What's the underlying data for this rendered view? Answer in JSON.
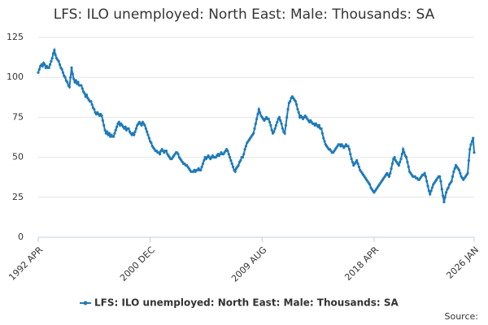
{
  "chart_data": {
    "type": "line",
    "title": "LFS: ILO unemployed: North East: Male: Thousands: SA",
    "source": "Source:",
    "categories": [
      "1992 APR",
      null,
      null,
      null,
      null,
      null,
      null,
      null,
      null,
      null,
      null,
      null,
      null,
      null,
      null,
      null,
      null,
      null,
      null,
      null,
      null,
      null,
      null,
      null,
      null,
      null,
      null,
      null,
      null,
      null,
      null,
      null,
      null,
      null,
      null,
      null,
      null,
      null,
      null,
      null,
      null,
      null,
      null,
      null,
      null,
      null,
      null,
      null,
      null,
      null,
      null,
      null,
      null,
      null,
      null,
      null,
      null,
      null,
      null,
      null,
      null,
      null,
      null,
      null,
      null,
      null,
      null,
      null,
      null,
      null,
      null,
      null,
      null,
      null,
      null,
      null,
      null,
      null,
      null,
      null,
      null,
      null,
      null,
      null,
      null,
      null,
      null,
      null,
      null,
      null,
      null,
      null,
      null,
      null,
      null,
      null,
      null,
      null,
      null,
      null,
      null,
      null,
      null,
      null,
      "2000 DEC",
      null,
      null,
      null,
      null,
      null,
      null,
      null,
      null,
      null,
      null,
      null,
      null,
      null,
      null,
      null,
      null,
      null,
      null,
      null,
      null,
      null,
      null,
      null,
      null,
      null,
      null,
      null,
      null,
      null,
      null,
      null,
      null,
      null,
      null,
      null,
      null,
      null,
      null,
      null,
      null,
      null,
      null,
      null,
      null,
      null,
      null,
      null,
      null,
      null,
      null,
      null,
      null,
      null,
      null,
      null,
      null,
      null,
      null,
      null,
      null,
      null,
      null,
      null,
      null,
      null,
      null,
      null,
      null,
      null,
      null,
      null,
      null,
      null,
      null,
      null,
      null,
      null,
      null,
      null,
      null,
      null,
      null,
      null,
      null,
      null,
      null,
      null,
      null,
      null,
      null,
      null,
      null,
      null,
      null,
      null,
      null,
      null,
      null,
      null,
      null,
      null,
      null,
      null,
      "2009 AUG",
      null,
      null,
      null,
      null,
      null,
      null,
      null,
      null,
      null,
      null,
      null,
      null,
      null,
      null,
      null,
      null,
      null,
      null,
      null,
      null,
      null,
      null,
      null,
      null,
      null,
      null,
      null,
      null,
      null,
      null,
      null,
      null,
      null,
      null,
      null,
      null,
      null,
      null,
      null,
      null,
      null,
      null,
      null,
      null,
      null,
      null,
      null,
      null,
      null,
      null,
      null,
      null,
      null,
      null,
      null,
      null,
      null,
      null,
      null,
      null,
      null,
      null,
      null,
      null,
      null,
      null,
      null,
      null,
      null,
      null,
      null,
      null,
      null,
      null,
      null,
      null,
      null,
      null,
      null,
      null,
      null,
      null,
      null,
      null,
      null,
      null,
      null,
      null,
      null,
      null,
      null,
      null,
      null,
      null,
      null,
      null,
      null,
      null,
      null,
      null,
      null,
      null,
      null,
      "2018 APR",
      null,
      null,
      null,
      null,
      null,
      null,
      null,
      null,
      null,
      null,
      null,
      null,
      null,
      null,
      null,
      null,
      null,
      null,
      null,
      null,
      null,
      null,
      null,
      null,
      null,
      null,
      null,
      null,
      null,
      null,
      null,
      null,
      null,
      null,
      null,
      null,
      null,
      null,
      null,
      null,
      null,
      null,
      null,
      null,
      null,
      null,
      null,
      null,
      null,
      null,
      null,
      null,
      null,
      null,
      null,
      null,
      null,
      null,
      null,
      null,
      null,
      null,
      null,
      null,
      null,
      null,
      null,
      null,
      null,
      null,
      null,
      null,
      null,
      null,
      null,
      null,
      null,
      null,
      null,
      null,
      null,
      null,
      null,
      null,
      null,
      null,
      null,
      null,
      null,
      null,
      null,
      null,
      "2026 JAN"
    ],
    "series": [
      {
        "name": "LFS: ILO unemployed: North East: Male: Thousands: SA",
        "color": "#1f7ab8",
        "values": [
          103,
          105,
          107,
          108,
          107,
          109,
          108,
          106,
          107,
          106,
          106,
          108,
          110,
          112,
          115,
          117,
          114,
          112,
          111,
          110,
          108,
          106,
          105,
          103,
          101,
          100,
          98,
          97,
          95,
          94,
          100,
          106,
          102,
          99,
          97,
          98,
          96,
          97,
          95,
          95,
          95,
          93,
          91,
          90,
          88,
          89,
          87,
          86,
          85,
          85,
          83,
          81,
          80,
          78,
          77,
          78,
          77,
          76,
          77,
          76,
          73,
          70,
          67,
          65,
          66,
          64,
          65,
          63,
          64,
          63,
          63,
          65,
          67,
          69,
          71,
          72,
          70,
          71,
          70,
          69,
          68,
          69,
          67,
          68,
          68,
          66,
          65,
          64,
          65,
          64,
          66,
          68,
          70,
          71,
          72,
          71,
          70,
          72,
          71,
          70,
          68,
          66,
          64,
          62,
          60,
          59,
          57,
          56,
          55,
          54,
          54,
          53,
          53,
          52,
          54,
          55,
          54,
          53,
          54,
          54,
          52,
          51,
          50,
          49,
          49,
          50,
          51,
          52,
          53,
          53,
          52,
          50,
          49,
          48,
          47,
          46,
          46,
          45,
          45,
          44,
          43,
          42,
          41,
          41,
          41,
          42,
          41,
          42,
          42,
          43,
          42,
          42,
          44,
          46,
          48,
          50,
          49,
          50,
          51,
          50,
          49,
          50,
          51,
          50,
          50,
          50,
          51,
          52,
          51,
          52,
          53,
          52,
          52,
          53,
          54,
          55,
          54,
          52,
          50,
          48,
          46,
          44,
          42,
          41,
          43,
          44,
          45,
          47,
          48,
          50,
          50,
          52,
          55,
          57,
          59,
          60,
          61,
          62,
          63,
          64,
          65,
          68,
          71,
          74,
          77,
          80,
          78,
          76,
          75,
          74,
          73,
          74,
          75,
          74,
          74,
          72,
          70,
          67,
          65,
          66,
          68,
          70,
          72,
          74,
          75,
          73,
          71,
          68,
          66,
          65,
          70,
          75,
          80,
          84,
          85,
          87,
          88,
          87,
          86,
          85,
          83,
          80,
          78,
          75,
          76,
          75,
          74,
          75,
          76,
          75,
          74,
          73,
          72,
          73,
          72,
          71,
          71,
          70,
          71,
          70,
          69,
          70,
          68,
          68,
          65,
          62,
          60,
          58,
          57,
          56,
          55,
          55,
          54,
          53,
          53,
          54,
          55,
          56,
          57,
          58,
          58,
          57,
          58,
          57,
          56,
          57,
          58,
          57,
          57,
          55,
          52,
          49,
          47,
          45,
          46,
          47,
          48,
          46,
          44,
          42,
          41,
          40,
          39,
          38,
          37,
          36,
          35,
          34,
          33,
          31,
          30,
          29,
          28,
          29,
          30,
          31,
          32,
          33,
          34,
          35,
          36,
          37,
          38,
          39,
          40,
          39,
          38,
          40,
          43,
          46,
          49,
          50,
          48,
          47,
          46,
          45,
          47,
          49,
          52,
          55,
          53,
          51,
          50,
          47,
          44,
          41,
          40,
          39,
          38,
          38,
          38,
          37,
          37,
          36,
          36,
          37,
          38,
          39,
          39,
          40,
          38,
          35,
          32,
          29,
          27,
          29,
          31,
          33,
          34,
          35,
          36,
          37,
          38,
          38,
          35,
          30,
          26,
          22,
          25,
          28,
          30,
          31,
          33,
          34,
          35,
          38,
          41,
          43,
          45,
          44,
          43,
          42,
          40,
          38,
          37,
          36,
          37,
          38,
          39,
          40,
          48,
          55,
          58,
          60,
          62,
          53
        ]
      }
    ],
    "ylim": [
      0,
      125
    ],
    "yticks": [
      0,
      25,
      50,
      75,
      100,
      125
    ],
    "grid": true
  }
}
